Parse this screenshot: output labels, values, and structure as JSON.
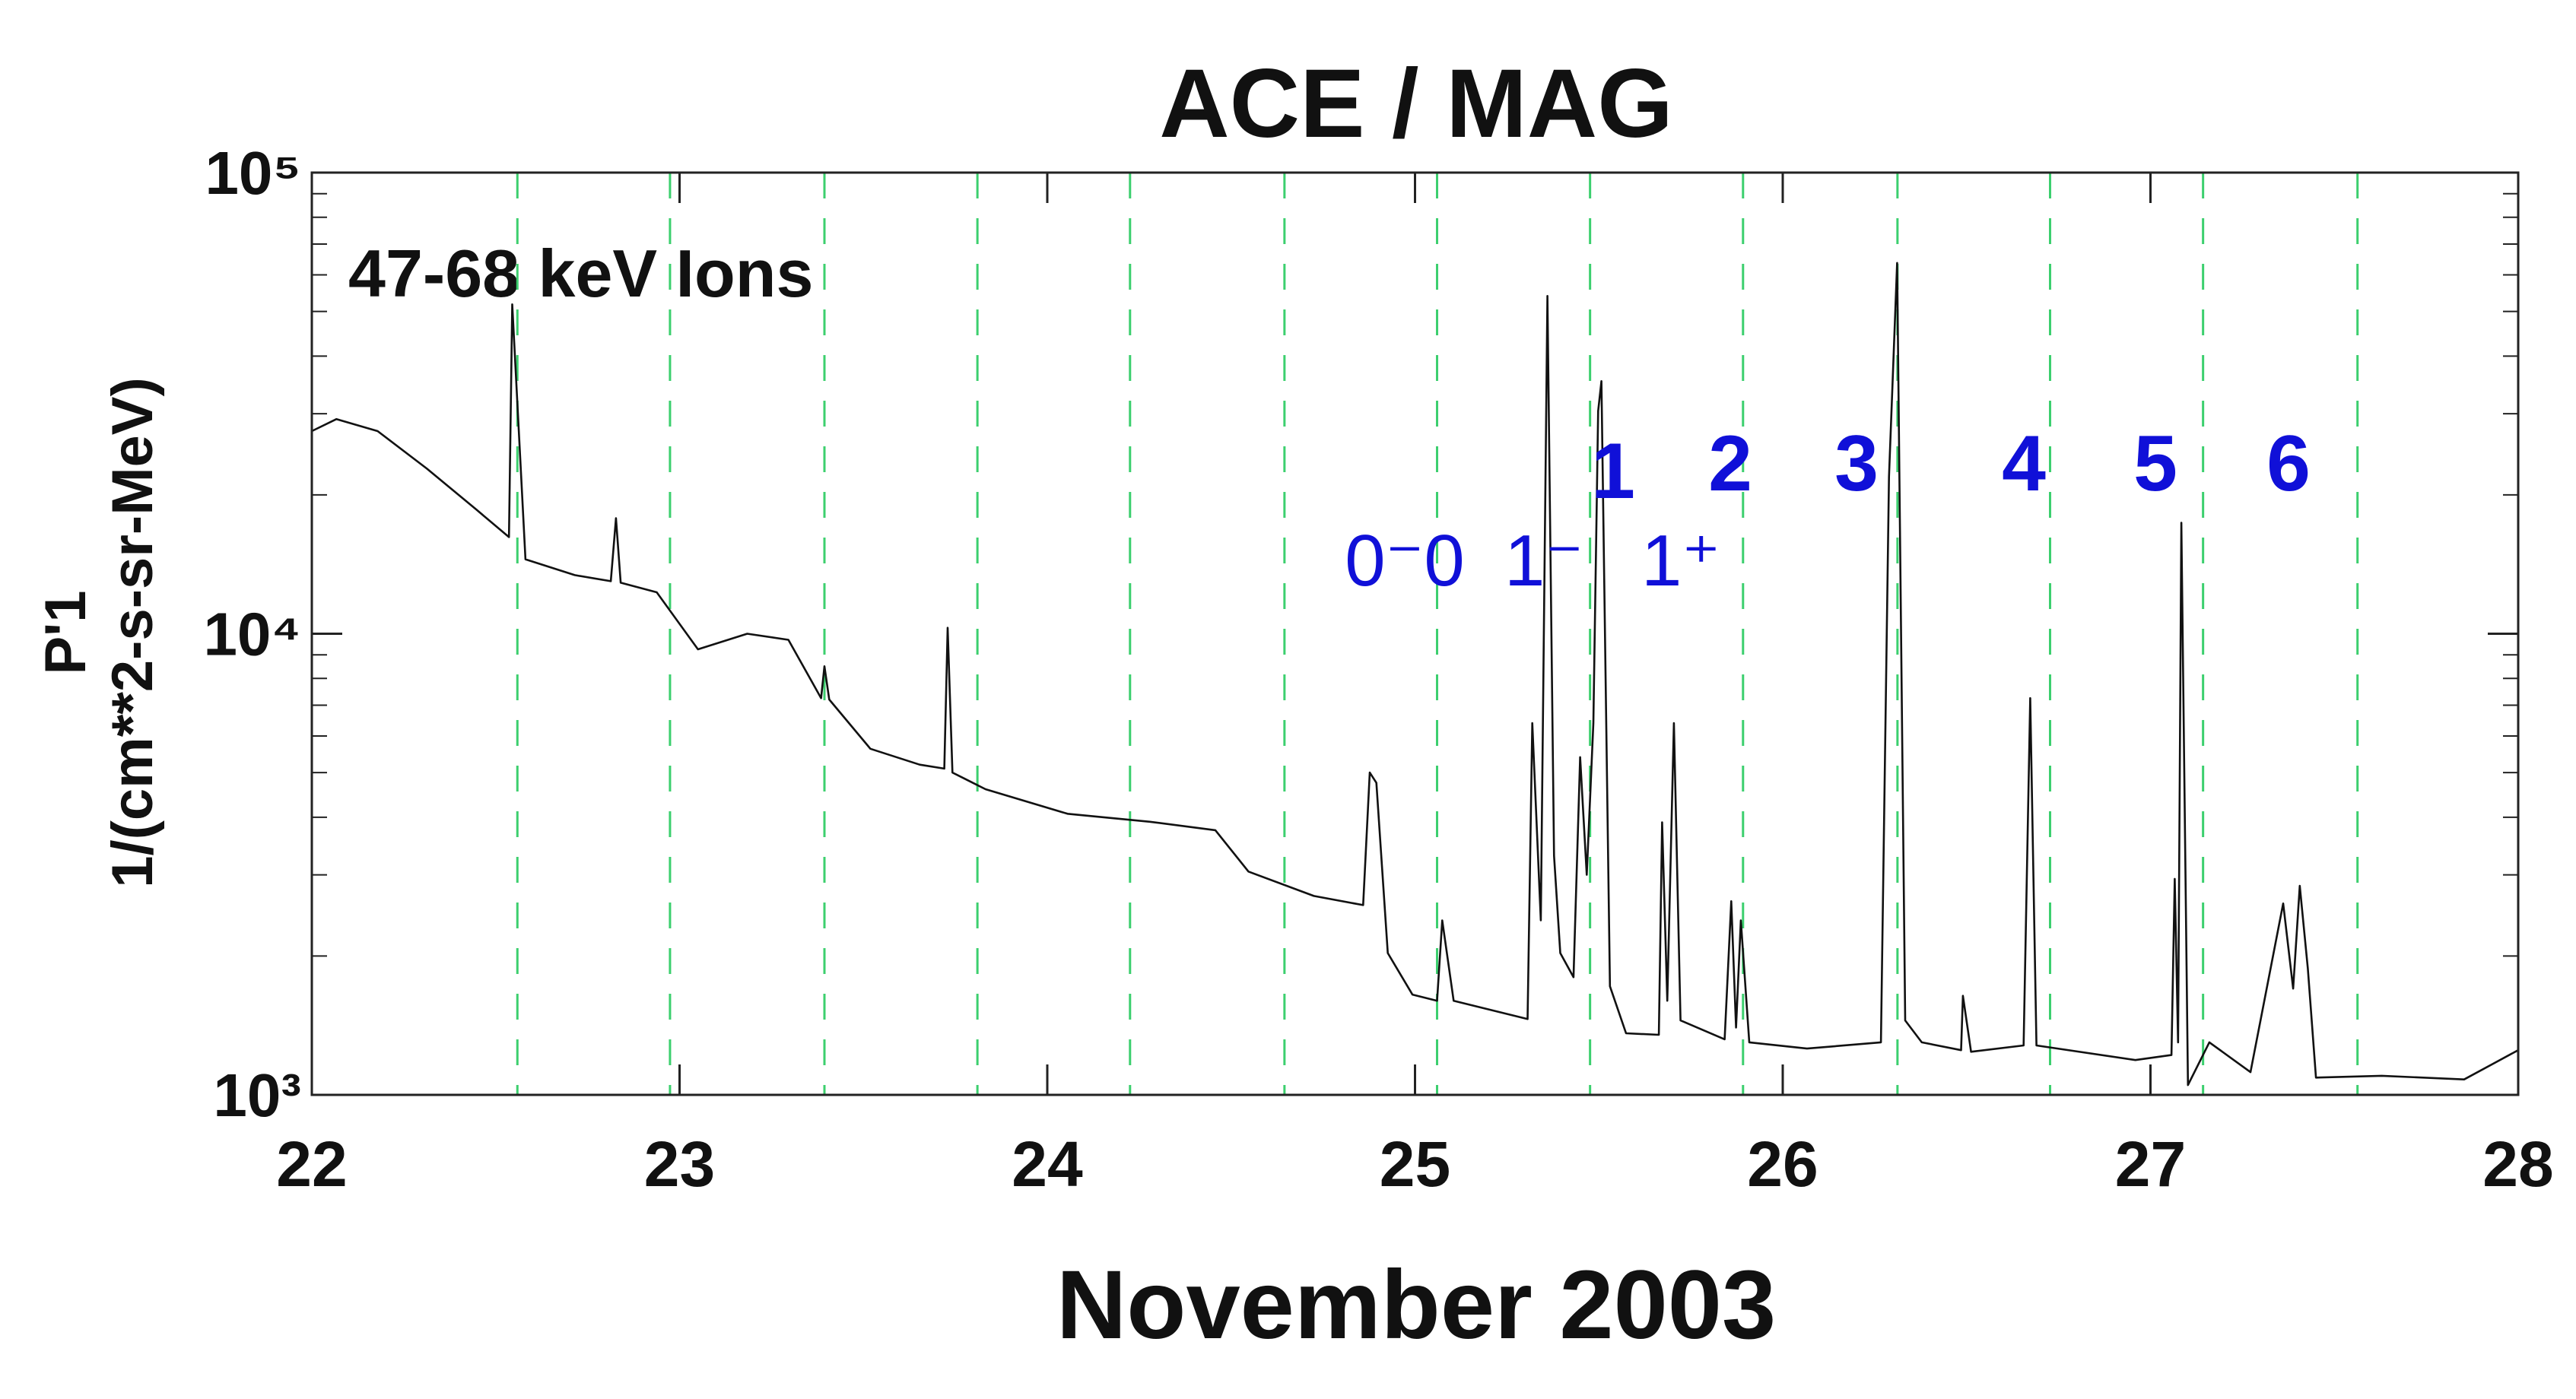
{
  "chart_data": {
    "type": "line",
    "title": "ACE / MAG",
    "panel_label": "47-68 keV Ions",
    "xlabel": "November 2003",
    "ylabel": [
      "P'1",
      "1/(cm**2-s-sr-MeV)"
    ],
    "xlim": [
      22,
      28
    ],
    "xticks": [
      22,
      23,
      24,
      25,
      26,
      27,
      28
    ],
    "ylim": [
      1000,
      100000
    ],
    "log_y": true,
    "yticks": [
      {
        "value": 1000,
        "label": "10³"
      },
      {
        "value": 10000,
        "label": "10⁴"
      },
      {
        "value": 100000,
        "label": "10⁵"
      }
    ],
    "yminorticks": [
      2000,
      3000,
      4000,
      5000,
      6000,
      7000,
      8000,
      9000,
      20000,
      30000,
      40000,
      50000,
      60000,
      70000,
      80000,
      90000
    ],
    "vlines": [
      22.559,
      22.974,
      23.394,
      23.81,
      24.225,
      24.645,
      25.06,
      25.476,
      25.892,
      26.312,
      26.727,
      27.143,
      27.563
    ],
    "vline_color": "#3ccf6e",
    "annotations": [
      "0⁻0",
      "1⁻",
      "1",
      "1⁺",
      "2",
      "3",
      "4",
      "5",
      "6"
    ],
    "annotation_color": "#1010d8",
    "series": [
      {
        "name": "47-68 keV Ions",
        "color": "#111111",
        "x": [
          22.0,
          22.067,
          22.179,
          22.313,
          22.447,
          22.536,
          22.545,
          22.581,
          22.715,
          22.813,
          22.827,
          22.84,
          22.938,
          23.05,
          23.184,
          23.296,
          23.385,
          23.394,
          23.407,
          23.519,
          23.653,
          23.72,
          23.729,
          23.742,
          23.832,
          24.055,
          24.279,
          24.457,
          24.547,
          24.725,
          24.859,
          24.877,
          24.895,
          24.926,
          24.993,
          25.06,
          25.074,
          25.105,
          25.306,
          25.319,
          25.342,
          25.36,
          25.378,
          25.395,
          25.431,
          25.449,
          25.467,
          25.485,
          25.498,
          25.507,
          25.53,
          25.574,
          25.663,
          25.672,
          25.686,
          25.704,
          25.722,
          25.842,
          25.86,
          25.873,
          25.886,
          25.909,
          26.066,
          26.267,
          26.289,
          26.311,
          26.333,
          26.378,
          26.485,
          26.49,
          26.512,
          26.655,
          26.673,
          26.69,
          26.959,
          27.057,
          27.066,
          27.075,
          27.084,
          27.102,
          27.16,
          27.272,
          27.361,
          27.388,
          27.406,
          27.428,
          27.45,
          27.629,
          27.853,
          28.0
        ],
        "values": [
          27500,
          29200,
          27500,
          22800,
          18600,
          16200,
          51800,
          14500,
          13400,
          13000,
          17800,
          12900,
          12300,
          9250,
          10000,
          9700,
          7250,
          8500,
          7200,
          5630,
          5200,
          5100,
          10300,
          5000,
          4600,
          4070,
          3910,
          3750,
          3050,
          2700,
          2580,
          5000,
          4750,
          2030,
          1650,
          1600,
          2390,
          1600,
          1460,
          6400,
          2390,
          54000,
          3300,
          2030,
          1800,
          5400,
          3000,
          6400,
          30400,
          35300,
          1720,
          1360,
          1350,
          3900,
          1600,
          6400,
          1450,
          1320,
          2630,
          1400,
          2390,
          1300,
          1260,
          1300,
          21900,
          63700,
          1450,
          1300,
          1250,
          1640,
          1240,
          1280,
          7250,
          1280,
          1190,
          1220,
          2940,
          1300,
          17400,
          1050,
          1300,
          1120,
          2600,
          1700,
          2840,
          1880,
          1090,
          1100,
          1080,
          1250
        ]
      }
    ]
  }
}
